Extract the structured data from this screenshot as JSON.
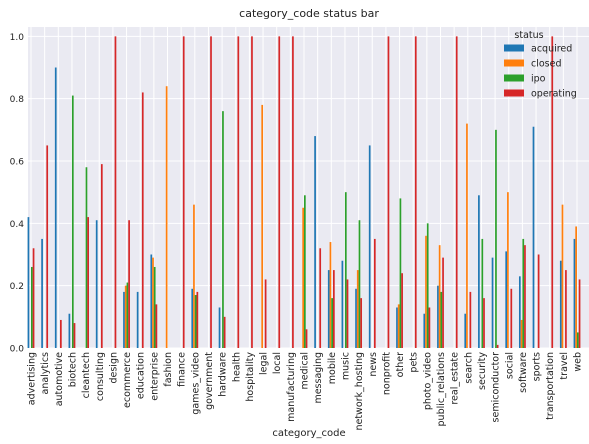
{
  "chart_data": {
    "type": "bar",
    "title": "category_code status bar",
    "xlabel": "category_code",
    "ylabel": "",
    "ylim": [
      0,
      1.03
    ],
    "yticks": [
      "0.0",
      "0.2",
      "0.4",
      "0.6",
      "0.8",
      "1.0"
    ],
    "grid": true,
    "legend_title": "status",
    "legend_position": "top-right",
    "categories": [
      "advertising",
      "analytics",
      "automotive",
      "biotech",
      "cleantech",
      "consulting",
      "design",
      "ecommerce",
      "education",
      "enterprise",
      "fashion",
      "finance",
      "games_video",
      "government",
      "hardware",
      "health",
      "hospitality",
      "legal",
      "local",
      "manufacturing",
      "medical",
      "messaging",
      "mobile",
      "music",
      "network_hosting",
      "news",
      "nonprofit",
      "other",
      "pets",
      "photo_video",
      "public_relations",
      "real_estate",
      "search",
      "security",
      "semiconductor",
      "social",
      "software",
      "sports",
      "transportation",
      "travel",
      "web"
    ],
    "series": [
      {
        "name": "acquired",
        "color": "#1f77b4",
        "values": [
          0.42,
          0.35,
          0.9,
          0.11,
          0,
          0.41,
          0,
          0.18,
          0.18,
          0.3,
          0,
          0,
          0.19,
          0,
          0.13,
          0,
          0,
          0,
          0,
          0,
          0,
          0.68,
          0.25,
          0.28,
          0.19,
          0.65,
          0,
          0.13,
          0,
          0.11,
          0.2,
          0,
          0.11,
          0.49,
          0.29,
          0.31,
          0.23,
          0.71,
          0,
          0.28,
          0.35
        ]
      },
      {
        "name": "closed",
        "color": "#ff7f0e",
        "values": [
          0,
          0,
          0,
          0,
          0,
          0,
          0,
          0.2,
          0,
          0.29,
          0.84,
          0,
          0.46,
          0,
          0,
          0,
          0,
          0.78,
          0,
          0,
          0.45,
          0,
          0.34,
          0,
          0.25,
          0,
          0,
          0.14,
          0,
          0.36,
          0.33,
          0,
          0.72,
          0,
          0,
          0.5,
          0.09,
          0,
          0,
          0.46,
          0.39
        ]
      },
      {
        "name": "ipo",
        "color": "#2ca02c",
        "values": [
          0.26,
          0,
          0,
          0.81,
          0.58,
          0,
          0,
          0.21,
          0,
          0.26,
          0,
          0,
          0.17,
          0,
          0.76,
          0,
          0,
          0,
          0,
          0,
          0.49,
          0,
          0.16,
          0.5,
          0.41,
          0,
          0,
          0.48,
          0,
          0.4,
          0.18,
          0,
          0,
          0.35,
          0.7,
          0,
          0.35,
          0,
          0,
          0,
          0.05
        ]
      },
      {
        "name": "operating",
        "color": "#d62728",
        "values": [
          0.32,
          0.65,
          0.09,
          0.08,
          0.42,
          0.59,
          1.0,
          0.41,
          0.82,
          0.14,
          0,
          1.0,
          0.18,
          1.0,
          0.1,
          1.0,
          1.0,
          0.22,
          1.0,
          1.0,
          0.06,
          0.32,
          0.25,
          0.22,
          0.16,
          0.35,
          1.0,
          0.24,
          1.0,
          0.13,
          0.29,
          1.0,
          0.18,
          0.16,
          0.01,
          0.19,
          0.33,
          0.3,
          1.0,
          0.25,
          0.22
        ]
      }
    ]
  }
}
